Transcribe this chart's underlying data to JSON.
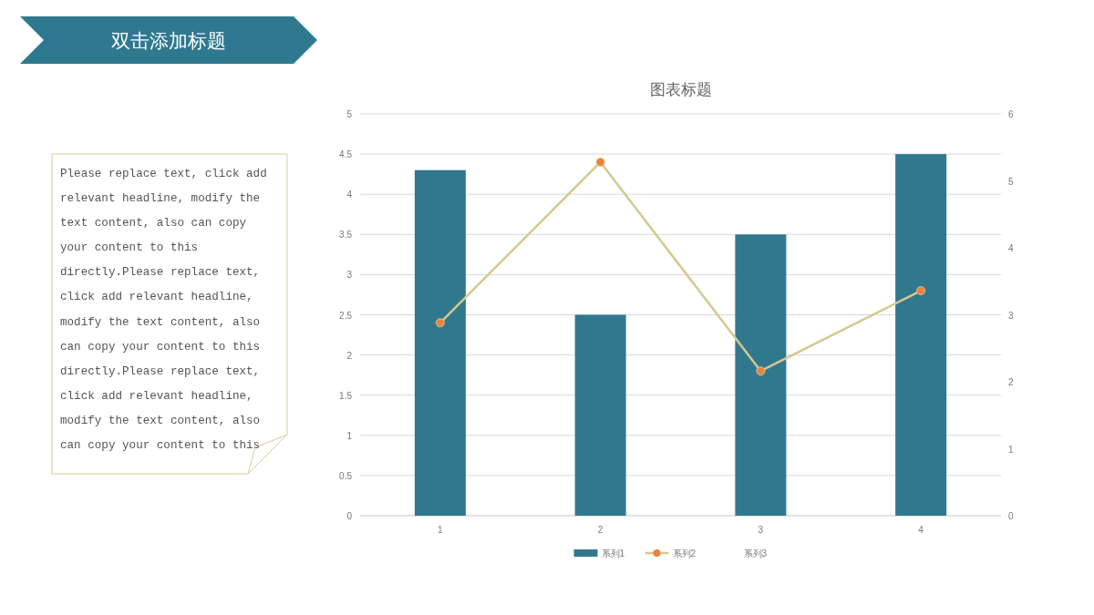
{
  "chart_data": {
    "type": "bar",
    "title": "双击添加标题",
    "subtitle": "图表标题",
    "annotations": [
      "Please replace text, click add relevant headline, modify the text content, also can copy your content to this directly.Please replace text, click add relevant headline, modify the text content, also can copy your content to this directly.Please replace text, click add relevant headline, modify the text content, also can copy your content to this"
    ],
    "categories": [
      "1",
      "2",
      "3",
      "4"
    ],
    "series": [
      {
        "name": "系列1",
        "color": "#31788f",
        "values": [
          4.3,
          2.5,
          3.5,
          4.5
        ]
      },
      {
        "name": "系列2",
        "type": "line",
        "color": "#d6c88e",
        "marker": "circle",
        "colors": [
          "#e9823a",
          "#e9823a",
          "#e9823a",
          "#e9823a"
        ],
        "values": [
          2.4,
          4.4,
          1.8,
          2.8
        ]
      },
      {
        "name": "系列3",
        "type": "line",
        "values": [
          null,
          null,
          null,
          null
        ]
      }
    ],
    "ylim": [
      0,
      5
    ],
    "yticks": [
      0,
      0.5,
      1,
      1.5,
      2,
      2.5,
      3,
      3.5,
      4,
      4.5,
      5
    ],
    "y2lim": [
      0,
      6
    ],
    "y2ticks": [
      0,
      1,
      2,
      3,
      4,
      5,
      6
    ],
    "grid": "y",
    "legend": "bottom"
  }
}
